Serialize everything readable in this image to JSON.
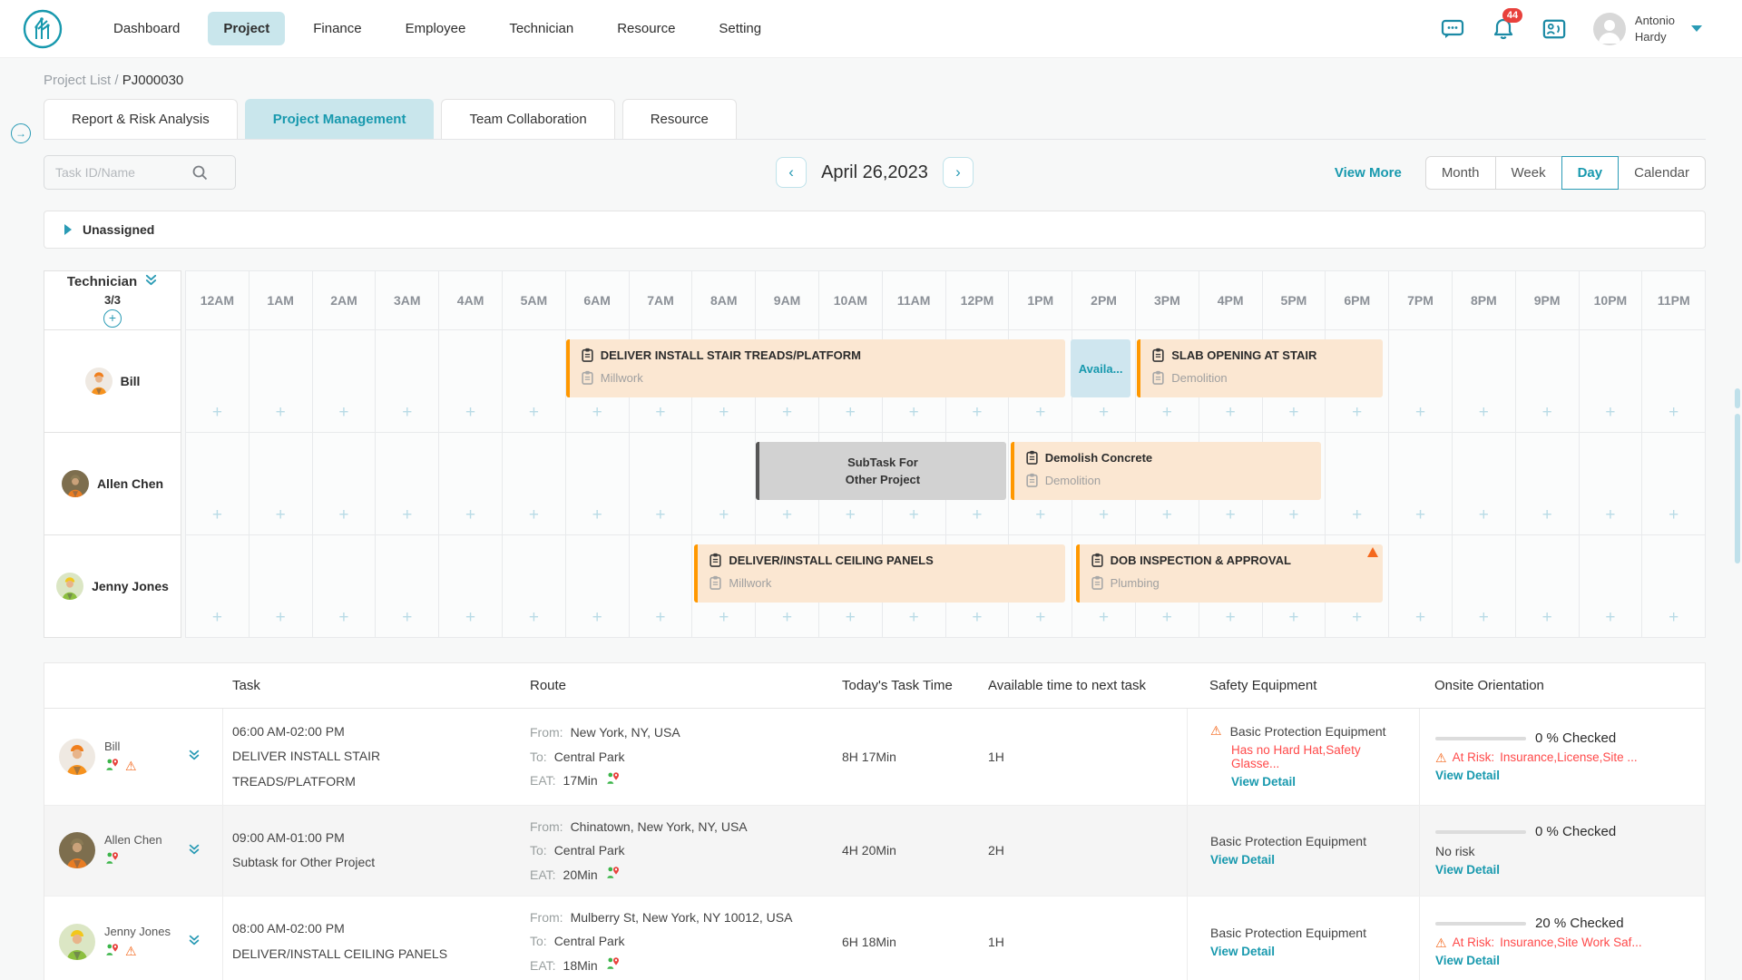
{
  "nav": {
    "items": [
      "Dashboard",
      "Project",
      "Finance",
      "Employee",
      "Technician",
      "Resource",
      "Setting"
    ],
    "active_index": 1
  },
  "header_icons": {
    "notification_count": "44"
  },
  "user": {
    "first_line": "Antonio",
    "second_line": "Hardy"
  },
  "breadcrumb": {
    "parent": "Project List",
    "separator": "/",
    "current": "PJ000030"
  },
  "tabs": [
    {
      "label": "Report & Risk Analysis",
      "active": false
    },
    {
      "label": "Project Management",
      "active": true
    },
    {
      "label": "Team Collaboration",
      "active": false
    },
    {
      "label": "Resource",
      "active": false
    }
  ],
  "toolbar": {
    "search_placeholder": "Task ID/Name",
    "prev": "‹",
    "next": "›",
    "date": "April 26,2023",
    "view_more": "View More",
    "views": [
      "Month",
      "Week",
      "Day",
      "Calendar"
    ],
    "active_view_index": 2
  },
  "unassigned_label": "Unassigned",
  "gantt": {
    "tech_header": "Technician",
    "tech_count": "3/3",
    "hours": [
      "12AM",
      "1AM",
      "2AM",
      "3AM",
      "4AM",
      "5AM",
      "6AM",
      "7AM",
      "8AM",
      "9AM",
      "10AM",
      "11AM",
      "12PM",
      "1PM",
      "2PM",
      "3PM",
      "4PM",
      "5PM",
      "6PM",
      "7PM",
      "8PM",
      "9PM",
      "10PM",
      "11PM"
    ],
    "rows": [
      {
        "name": "Bill",
        "avatar": "bill",
        "bars": [
          {
            "kind": "task",
            "title": "DELIVER INSTALL STAIR TREADS/PLATFORM",
            "subtitle": "Millwork",
            "start": 6.0,
            "end": 13.88
          },
          {
            "kind": "available",
            "label": "Availa...",
            "start": 13.97,
            "end": 14.92
          },
          {
            "kind": "task",
            "title": "SLAB OPENING AT STAIR",
            "subtitle": "Demolition",
            "start": 15.02,
            "end": 18.9
          }
        ]
      },
      {
        "name": "Allen Chen",
        "avatar": "allen",
        "bars": [
          {
            "kind": "subtask",
            "lines": [
              "SubTask For",
              "Other Project"
            ],
            "start": 9.0,
            "end": 12.95
          },
          {
            "kind": "task",
            "title": "Demolish Concrete",
            "subtitle": "Demolition",
            "start": 13.02,
            "end": 17.92
          }
        ]
      },
      {
        "name": "Jenny Jones",
        "avatar": "jenny",
        "bars": [
          {
            "kind": "task",
            "title": "DELIVER/INSTALL CEILING PANELS",
            "subtitle": "Millwork",
            "start": 8.03,
            "end": 13.88
          },
          {
            "kind": "task",
            "title": "DOB INSPECTION & APPROVAL",
            "subtitle": "Plumbing",
            "start": 14.05,
            "end": 18.9,
            "warn": true
          }
        ]
      }
    ]
  },
  "table": {
    "headers": [
      "Task",
      "Route",
      "Today's Task Time",
      "Available time to next task",
      "Safety Equipment",
      "Onsite Orientation"
    ],
    "route_labels": {
      "from": "From:",
      "to": "To:",
      "eat": "EAT:"
    },
    "rows": [
      {
        "name": "Bill",
        "avatar": "bill",
        "warn_icon": true,
        "time": "06:00 AM-02:00 PM",
        "task": "DELIVER INSTALL STAIR TREADS/PLATFORM",
        "from": "New York, NY, USA",
        "to": "Central Park",
        "eat": "17Min",
        "today": "8H 17Min",
        "available": "1H",
        "safety": {
          "warn": true,
          "label": "Basic Protection Equipment",
          "issue": "Has no Hard Hat,Safety Glasse...",
          "view": "View Detail"
        },
        "onsite": {
          "pct": 0,
          "checked": "0 % Checked",
          "risk_label": "At Risk:",
          "risk_items": "Insurance,License,Site ...",
          "no_risk": "",
          "view": "View Detail"
        }
      },
      {
        "name": "Allen Chen",
        "avatar": "allen",
        "warn_icon": false,
        "time": "09:00 AM-01:00 PM",
        "task": "Subtask for Other Project",
        "from": "Chinatown, New York, NY, USA",
        "to": "Central Park",
        "eat": "20Min",
        "today": "4H 20Min",
        "available": "2H",
        "safety": {
          "warn": false,
          "label": "Basic Protection Equipment",
          "issue": "",
          "view": "View Detail"
        },
        "onsite": {
          "pct": 0,
          "checked": "0 % Checked",
          "risk_label": "",
          "risk_items": "",
          "no_risk": "No risk",
          "view": "View Detail"
        }
      },
      {
        "name": "Jenny Jones",
        "avatar": "jenny",
        "warn_icon": true,
        "time": "08:00 AM-02:00 PM",
        "task": "DELIVER/INSTALL CEILING PANELS",
        "from": "Mulberry St, New York, NY 10012, USA",
        "to": "Central Park",
        "eat": "18Min",
        "today": "6H 18Min",
        "available": "1H",
        "safety": {
          "warn": false,
          "label": "Basic Protection Equipment",
          "issue": "",
          "view": "View Detail"
        },
        "onsite": {
          "pct": 20,
          "checked": "20 % Checked",
          "risk_label": "At Risk:",
          "risk_items": "Insurance,Site Work Saf...",
          "no_risk": "",
          "view": "View Detail"
        }
      }
    ]
  },
  "colors": {
    "accent": "#1899ae",
    "orange": "#ff9800",
    "alert": "#f4681d",
    "red": "#ff4a4a",
    "progress_blue": "#2e9fe0"
  }
}
